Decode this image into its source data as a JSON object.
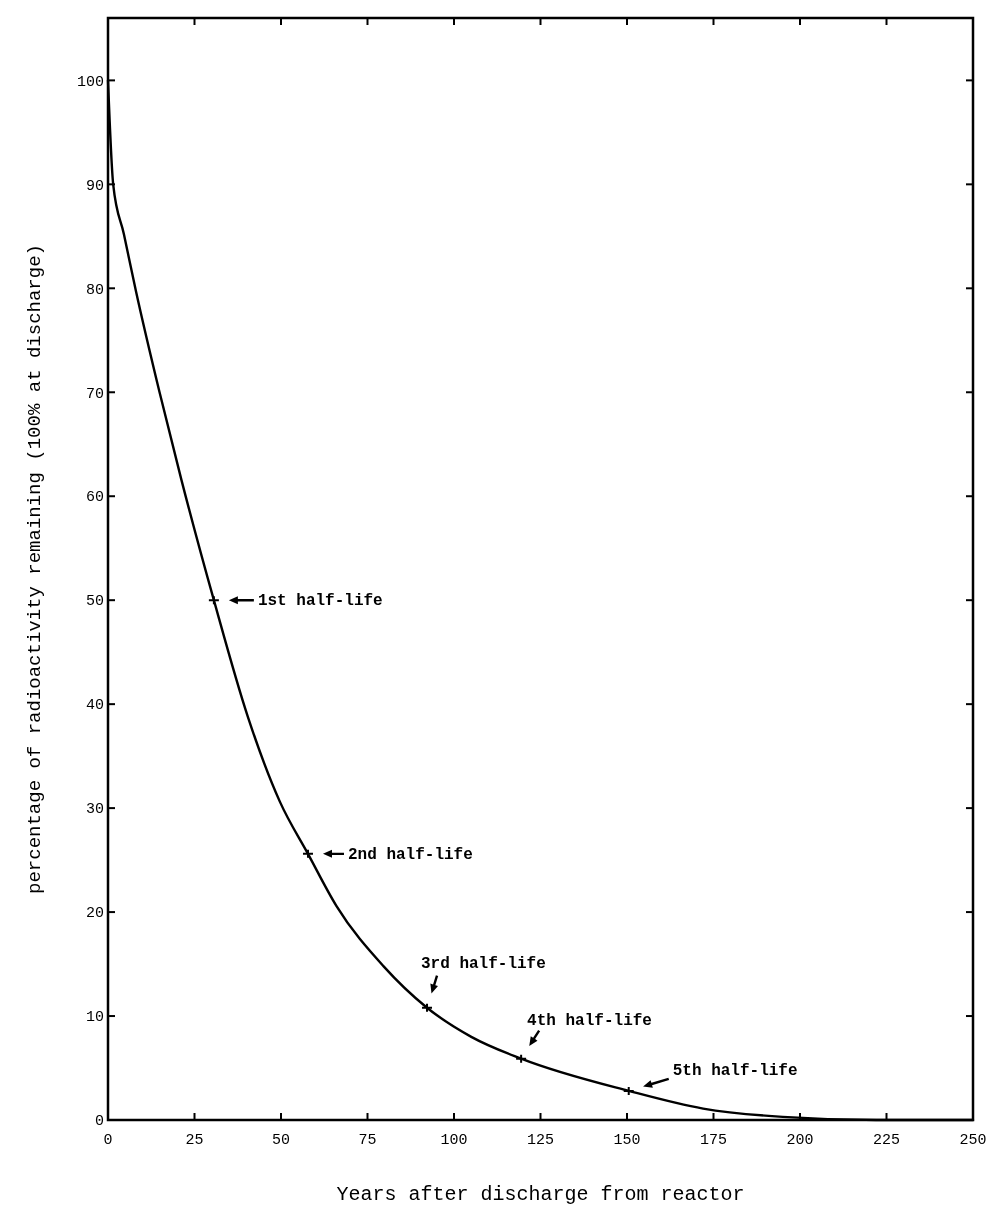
{
  "chart_data": {
    "type": "line",
    "xlabel": "Years after discharge from reactor",
    "ylabel": "percentage of radioactivity remaining (100% at discharge)",
    "x": [
      0,
      1.5,
      4.6,
      8.1,
      14.9,
      21.2,
      30.6,
      40.4,
      49.7,
      57.8,
      66,
      79.6,
      92.2,
      105,
      119.4,
      150.5,
      172,
      195,
      222,
      250
    ],
    "series": [
      {
        "color": "#000000",
        "values": [
          100,
          90,
          85.2,
          79.7,
          70,
          61.6,
          50,
          38.8,
          30.6,
          25.6,
          20.6,
          14.8,
          10.8,
          8,
          5.9,
          2.8,
          1.1,
          0.3,
          0,
          0
        ]
      },
      {
        "type": "scatter",
        "color": "#000000",
        "marker": "cross",
        "x": [
          30.6,
          57.8,
          92.2,
          119.4,
          150.5
        ],
        "values": [
          50,
          25.6,
          10.8,
          5.9,
          2.8
        ]
      }
    ],
    "xlim": [
      0,
      250
    ],
    "xticks": [
      0,
      25,
      50,
      75,
      100,
      125,
      150,
      175,
      200,
      225,
      250
    ],
    "ylim": [
      0,
      106
    ],
    "yticks": [
      0,
      10,
      20,
      30,
      40,
      50,
      60,
      70,
      80,
      90,
      100
    ],
    "grid": false,
    "marker": "none",
    "line_style": "solid",
    "annotations": [
      {
        "text": "1st half-life",
        "x": 30.6,
        "y": 50
      },
      {
        "text": "2nd half-life",
        "x": 57.8,
        "y": 25.6
      },
      {
        "text": "3rd half-life",
        "x": 92.2,
        "y": 10.8
      },
      {
        "text": "4th half-life",
        "x": 119.4,
        "y": 5.9
      },
      {
        "text": "5th half-life",
        "x": 150.5,
        "y": 2.8
      }
    ]
  }
}
